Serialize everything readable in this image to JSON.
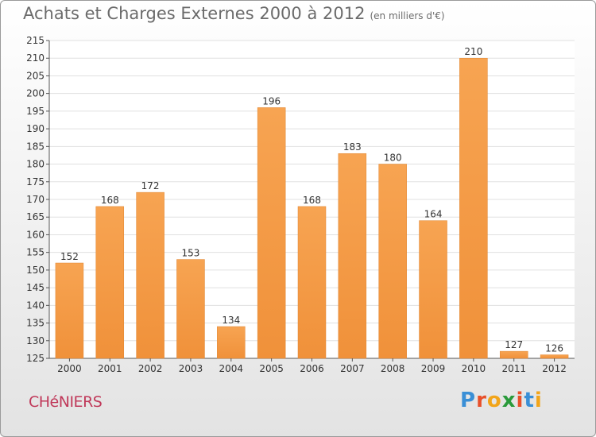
{
  "chart_data": {
    "type": "bar",
    "title": "Achats et Charges Externes 2000 à 2012",
    "subtitle": "(en milliers d'€)",
    "categories": [
      "2000",
      "2001",
      "2002",
      "2003",
      "2004",
      "2005",
      "2006",
      "2007",
      "2008",
      "2009",
      "2010",
      "2011",
      "2012"
    ],
    "values": [
      152,
      168,
      172,
      153,
      134,
      196,
      168,
      183,
      180,
      164,
      210,
      127,
      126
    ],
    "ylim": [
      125,
      215
    ],
    "yticks": [
      125,
      130,
      135,
      140,
      145,
      150,
      155,
      160,
      165,
      170,
      175,
      180,
      185,
      190,
      195,
      200,
      205,
      210,
      215
    ],
    "grid": true,
    "bar_color": "#f0913a"
  },
  "commune": "CHéNIERS",
  "logo": {
    "letters": [
      "P",
      "r",
      "o",
      "x",
      "i",
      "t",
      "i"
    ],
    "colors": [
      "#3a8fd6",
      "#e8502a",
      "#f2a51a",
      "#2a9a3a",
      "#e8502a",
      "#3a8fd6",
      "#f2a51a"
    ]
  }
}
